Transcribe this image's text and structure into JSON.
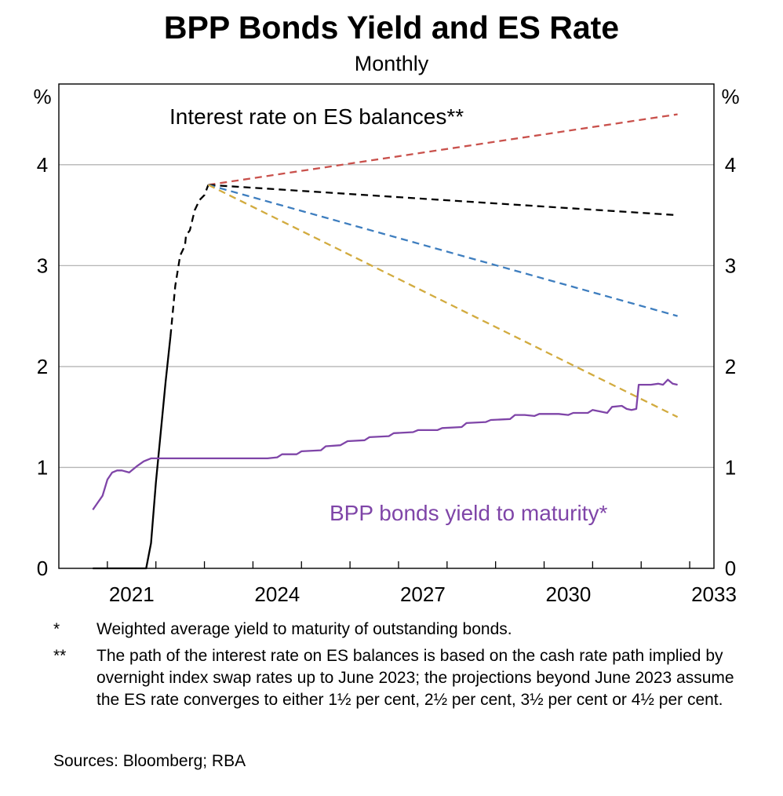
{
  "chart_data": {
    "type": "line",
    "title": "BPP Bonds Yield and ES Rate",
    "subtitle": "Monthly",
    "ylabel_left": "%",
    "ylabel_right": "%",
    "ylim": [
      0,
      4.8
    ],
    "yticks": [
      0,
      1,
      2,
      3,
      4
    ],
    "xlim": [
      2020.0,
      2033.5
    ],
    "xticks": [
      2021,
      2024,
      2027,
      2030,
      2033
    ],
    "grid": true,
    "annotations": [
      {
        "text": "Interest rate on ES balances**",
        "series": "es"
      },
      {
        "text": "BPP bonds yield to maturity*",
        "series": "bpp"
      }
    ],
    "series": [
      {
        "name": "Interest rate on ES balances",
        "color": "#000000",
        "style": "solid",
        "points": [
          [
            2020.7,
            0.0
          ],
          [
            2021.5,
            0.0
          ],
          [
            2021.75,
            0.0
          ],
          [
            2021.8,
            0.0
          ],
          [
            2021.9,
            0.25
          ],
          [
            2022.0,
            0.85
          ],
          [
            2022.1,
            1.35
          ],
          [
            2022.2,
            1.85
          ],
          [
            2022.3,
            2.3
          ]
        ]
      },
      {
        "name": "Interest rate on ES balances (expected path)",
        "color": "#000000",
        "style": "dashed",
        "points": [
          [
            2022.3,
            2.3
          ],
          [
            2022.4,
            2.8
          ],
          [
            2022.5,
            3.1
          ],
          [
            2022.6,
            3.2
          ],
          [
            2022.62,
            3.3
          ],
          [
            2022.7,
            3.35
          ],
          [
            2022.8,
            3.55
          ],
          [
            2022.9,
            3.65
          ],
          [
            2023.0,
            3.7
          ],
          [
            2023.08,
            3.8
          ]
        ]
      },
      {
        "name": "ES rate converges to 4½ per cent",
        "color": "#c9514c",
        "style": "dashed",
        "points": [
          [
            2023.08,
            3.8
          ],
          [
            2032.75,
            4.5
          ]
        ]
      },
      {
        "name": "ES rate converges to 3½ per cent",
        "color": "#000000",
        "style": "dashed",
        "points": [
          [
            2023.08,
            3.8
          ],
          [
            2032.75,
            3.5
          ]
        ]
      },
      {
        "name": "ES rate converges to 2½ per cent",
        "color": "#3e7ebf",
        "style": "dashed",
        "points": [
          [
            2023.08,
            3.8
          ],
          [
            2032.75,
            2.5
          ]
        ]
      },
      {
        "name": "ES rate converges to 1½ per cent",
        "color": "#d2ab3f",
        "style": "dashed",
        "points": [
          [
            2023.08,
            3.8
          ],
          [
            2032.75,
            1.5
          ]
        ]
      },
      {
        "name": "BPP bonds yield to maturity",
        "color": "#7f45a8",
        "style": "solid",
        "points": [
          [
            2020.7,
            0.58
          ],
          [
            2020.8,
            0.65
          ],
          [
            2020.9,
            0.72
          ],
          [
            2021.0,
            0.88
          ],
          [
            2021.1,
            0.95
          ],
          [
            2021.2,
            0.97
          ],
          [
            2021.3,
            0.97
          ],
          [
            2021.45,
            0.95
          ],
          [
            2021.6,
            1.01
          ],
          [
            2021.75,
            1.06
          ],
          [
            2021.9,
            1.09
          ],
          [
            2022.5,
            1.09
          ],
          [
            2023.5,
            1.09
          ],
          [
            2024.3,
            1.09
          ],
          [
            2024.5,
            1.1
          ],
          [
            2024.6,
            1.13
          ],
          [
            2024.9,
            1.13
          ],
          [
            2025.0,
            1.16
          ],
          [
            2025.4,
            1.17
          ],
          [
            2025.5,
            1.21
          ],
          [
            2025.8,
            1.22
          ],
          [
            2025.95,
            1.26
          ],
          [
            2026.3,
            1.27
          ],
          [
            2026.4,
            1.3
          ],
          [
            2026.8,
            1.31
          ],
          [
            2026.9,
            1.34
          ],
          [
            2027.3,
            1.35
          ],
          [
            2027.4,
            1.37
          ],
          [
            2027.8,
            1.37
          ],
          [
            2027.9,
            1.39
          ],
          [
            2028.3,
            1.4
          ],
          [
            2028.4,
            1.44
          ],
          [
            2028.8,
            1.45
          ],
          [
            2028.9,
            1.47
          ],
          [
            2029.3,
            1.48
          ],
          [
            2029.4,
            1.52
          ],
          [
            2029.6,
            1.52
          ],
          [
            2029.8,
            1.51
          ],
          [
            2029.9,
            1.53
          ],
          [
            2030.3,
            1.53
          ],
          [
            2030.5,
            1.52
          ],
          [
            2030.6,
            1.54
          ],
          [
            2030.9,
            1.54
          ],
          [
            2031.0,
            1.57
          ],
          [
            2031.2,
            1.55
          ],
          [
            2031.3,
            1.54
          ],
          [
            2031.4,
            1.6
          ],
          [
            2031.6,
            1.61
          ],
          [
            2031.7,
            1.58
          ],
          [
            2031.8,
            1.57
          ],
          [
            2031.9,
            1.58
          ],
          [
            2031.95,
            1.82
          ],
          [
            2032.2,
            1.82
          ],
          [
            2032.35,
            1.83
          ],
          [
            2032.45,
            1.82
          ],
          [
            2032.55,
            1.87
          ],
          [
            2032.65,
            1.83
          ],
          [
            2032.75,
            1.82
          ]
        ]
      }
    ]
  },
  "notes": [
    {
      "mark": "*",
      "text": "Weighted average yield to maturity of outstanding bonds."
    },
    {
      "mark": "**",
      "text": "The path of the interest rate on ES balances is based on the cash rate path implied by overnight index swap rates up to June 2023; the projections beyond June 2023 assume the ES rate converges to either 1½ per cent, 2½ per cent, 3½ per cent or 4½ per cent."
    }
  ],
  "sources": "Sources: Bloomberg; RBA"
}
